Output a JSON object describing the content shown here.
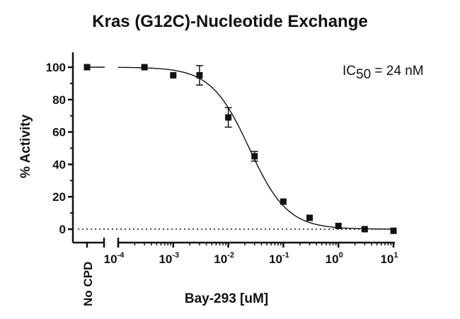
{
  "chart_data": {
    "type": "scatter",
    "title": "Kras (G12C)-Nucleotide Exchange",
    "xlabel": "Bay-293 [uM]",
    "ylabel": "% Activity",
    "x_scale": "log",
    "xlim": [
      0.0001,
      10
    ],
    "ylim": [
      -10,
      105
    ],
    "x_ticks": [
      {
        "value": 0.0001,
        "base": "10",
        "exp": "-4"
      },
      {
        "value": 0.001,
        "base": "10",
        "exp": "-3"
      },
      {
        "value": 0.01,
        "base": "10",
        "exp": "-2"
      },
      {
        "value": 0.1,
        "base": "10",
        "exp": "-1"
      },
      {
        "value": 1,
        "base": "10",
        "exp": "0"
      },
      {
        "value": 10,
        "base": "10",
        "exp": "1"
      }
    ],
    "y_ticks": [
      0,
      20,
      40,
      60,
      80,
      100
    ],
    "control": {
      "label": "No CPD",
      "y": 100
    },
    "points": [
      {
        "x": 0.0003,
        "y": 100,
        "err": 0
      },
      {
        "x": 0.001,
        "y": 95,
        "err": 0
      },
      {
        "x": 0.003,
        "y": 95,
        "err": 6
      },
      {
        "x": 0.01,
        "y": 69,
        "err": 6
      },
      {
        "x": 0.03,
        "y": 45,
        "err": 3
      },
      {
        "x": 0.1,
        "y": 17,
        "err": 0
      },
      {
        "x": 0.3,
        "y": 7,
        "err": 0
      },
      {
        "x": 1,
        "y": 2,
        "err": 0
      },
      {
        "x": 3,
        "y": 0,
        "err": 0
      },
      {
        "x": 10,
        "y": -1,
        "err": 0
      }
    ],
    "fit": {
      "model": "4PL",
      "top": 100,
      "bottom": 0,
      "ic50_uM": 0.024,
      "hill": 1.25
    },
    "baseline": {
      "y": 0,
      "style": "dotted"
    },
    "annotation": {
      "prefix": "IC",
      "subscript": "50",
      "suffix": " = 24 nM"
    },
    "grid": false,
    "legend": "none"
  }
}
